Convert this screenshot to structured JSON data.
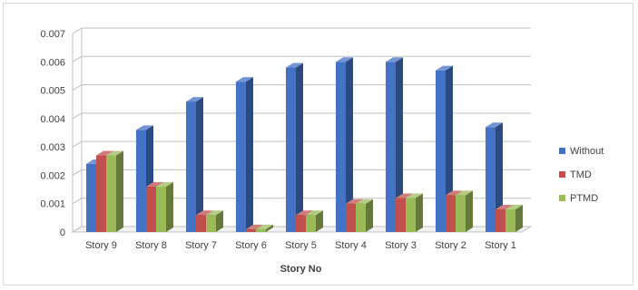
{
  "chart_data": {
    "type": "bar",
    "style": "3d-clustered-column",
    "title": "",
    "xlabel": "Story No",
    "ylabel": "",
    "ylim": [
      0,
      0.007
    ],
    "yticks": [
      "0",
      "0.001",
      "0.002",
      "0.003",
      "0.004",
      "0.005",
      "0.006",
      "0.007"
    ],
    "grid": true,
    "legend_position": "right",
    "categories": [
      "Story 9",
      "Story 8",
      "Story 7",
      "Story 6",
      "Story 5",
      "Story 4",
      "Story 3",
      "Story 2",
      "Story 1"
    ],
    "series": [
      {
        "name": "Without",
        "color": "#4472c4",
        "values": [
          0.0024,
          0.0036,
          0.0046,
          0.0053,
          0.0058,
          0.006,
          0.006,
          0.0057,
          0.0037
        ]
      },
      {
        "name": "TMD",
        "color": "#c0504d",
        "values": [
          0.0027,
          0.0016,
          0.0006,
          0.0001,
          0.0006,
          0.001,
          0.0012,
          0.0013,
          0.0008
        ]
      },
      {
        "name": "PTMD",
        "color": "#9bbb59",
        "values": [
          0.0027,
          0.0016,
          0.0006,
          0.0001,
          0.0006,
          0.001,
          0.0012,
          0.0013,
          0.0008
        ]
      }
    ]
  }
}
